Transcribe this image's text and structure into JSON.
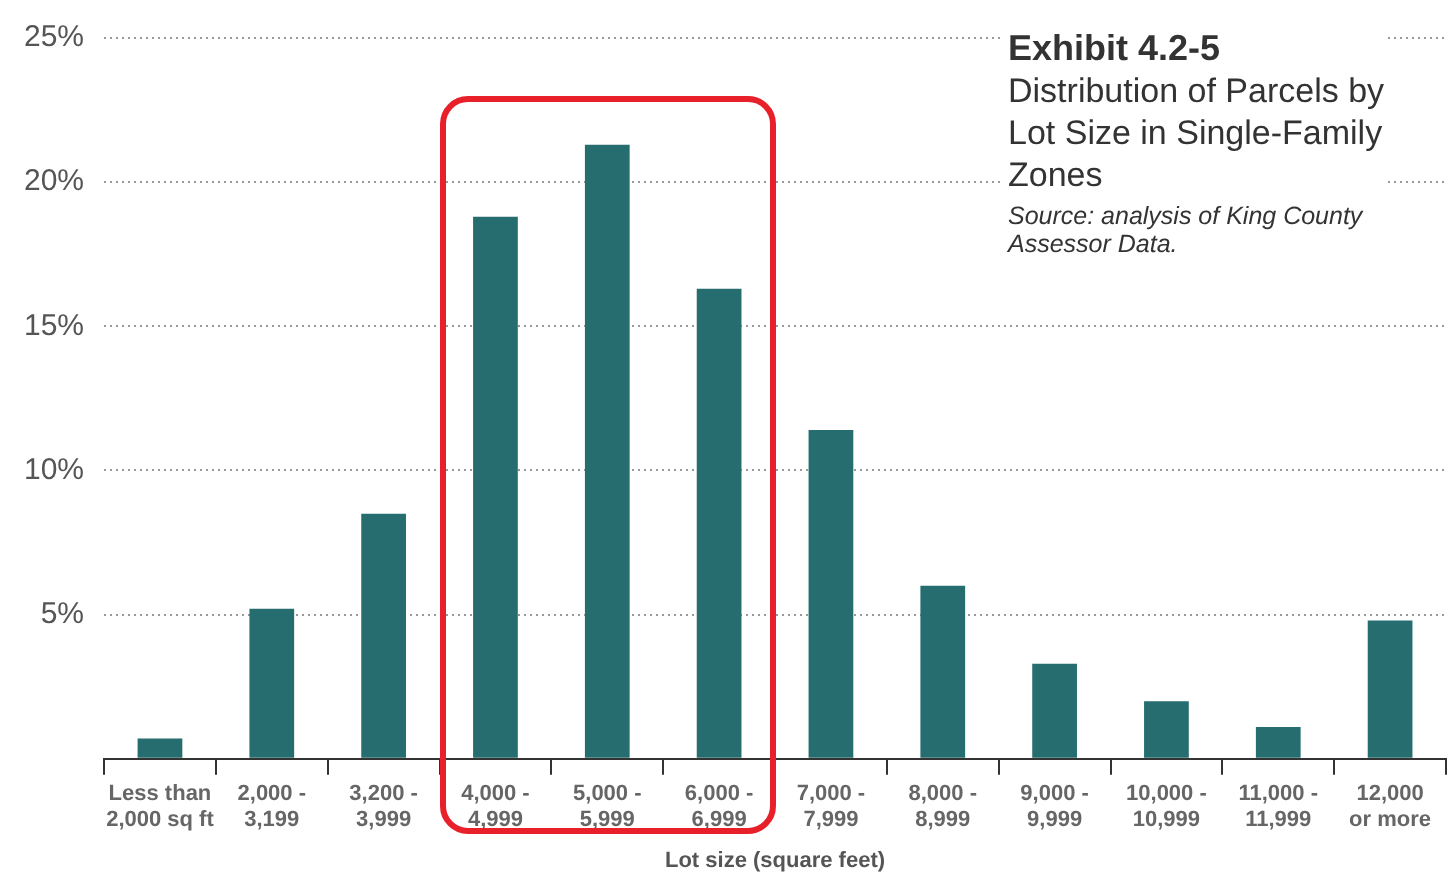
{
  "chart_data": {
    "type": "bar",
    "title": "Exhibit 4.2-5",
    "subtitle": "Distribution of Parcels by Lot Size in Single-Family Zones",
    "annotations": [
      "Source: analysis of King County Assessor Data."
    ],
    "xlabel": "Lot size (square feet)",
    "categories": [
      "Less than 2,000 sq ft",
      "2,000 - 3,199",
      "3,200 - 3,999",
      "4,000 - 4,999",
      "5,000 - 5,999",
      "6,000 - 6,999",
      "7,000 - 7,999",
      "8,000 - 8,999",
      "9,000 - 9,999",
      "10,000 - 10,999",
      "11,000 - 11,999",
      "12,000 or more"
    ],
    "values": [
      0.7,
      5.2,
      8.5,
      18.8,
      21.3,
      16.3,
      11.4,
      6.0,
      3.3,
      2.0,
      1.1,
      4.8
    ],
    "color": "#266d70",
    "ylim": [
      0,
      25
    ],
    "yticks": [
      {
        "value": 0,
        "label": null
      },
      {
        "value": 5,
        "label": "5%"
      },
      {
        "value": 10,
        "label": "10%"
      },
      {
        "value": 15,
        "label": "15%"
      },
      {
        "value": 20,
        "label": "20%"
      },
      {
        "value": 25,
        "label": "25%"
      }
    ],
    "grid": "y",
    "legend": false
  }
}
